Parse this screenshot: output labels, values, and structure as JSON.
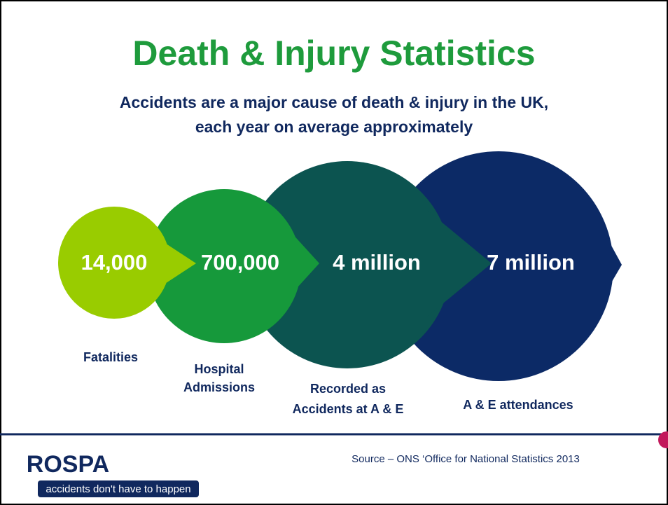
{
  "header": {
    "title": "Death & Injury Statistics",
    "subtitle": [
      "Accidents are a major cause of death & injury in the UK,",
      "each year on average approximately"
    ]
  },
  "items": [
    {
      "value": "14,000",
      "label": [
        "Fatalities"
      ]
    },
    {
      "value": "700,000",
      "label": [
        "Hospital",
        "Admissions"
      ]
    },
    {
      "value": "4 million",
      "label": [
        "Recorded as",
        "Accidents at A & E"
      ]
    },
    {
      "value": "7 million",
      "label": [
        "A & E attendances"
      ]
    }
  ],
  "footer": {
    "source": "Source – ONS  ‘Office for National Statistics 2013",
    "logo": "ROSPA",
    "tagline": "accidents don't have to happen"
  }
}
